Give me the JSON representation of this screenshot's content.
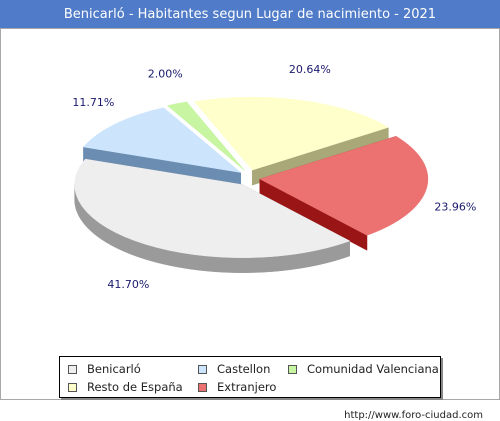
{
  "header": {
    "title": "Benicarló - Habitantes segun Lugar de nacimiento - 2021"
  },
  "chart_data": {
    "type": "pie",
    "title": "Benicarló - Habitantes segun Lugar de nacimiento - 2021",
    "slices": [
      {
        "label": "Benicarló",
        "value": 41.7,
        "display": "41.70%",
        "color": "#eeeeee",
        "side": "#9a9a9a"
      },
      {
        "label": "Castellon",
        "value": 11.71,
        "display": "11.71%",
        "color": "#cce5fd",
        "side": "#6b8db2"
      },
      {
        "label": "Comunidad Valenciana",
        "value": 2.0,
        "display": "2.00%",
        "color": "#c8f5a2",
        "side": "#6aaa3c"
      },
      {
        "label": "Resto de España",
        "value": 20.64,
        "display": "20.64%",
        "color": "#ffffcc",
        "side": "#a8a878"
      },
      {
        "label": "Extranjero",
        "value": 23.96,
        "display": "23.96%",
        "color": "#ec7272",
        "side": "#9a1515"
      }
    ],
    "legend_position": "bottom"
  },
  "footer": {
    "source": "http://www.foro-ciudad.com"
  }
}
